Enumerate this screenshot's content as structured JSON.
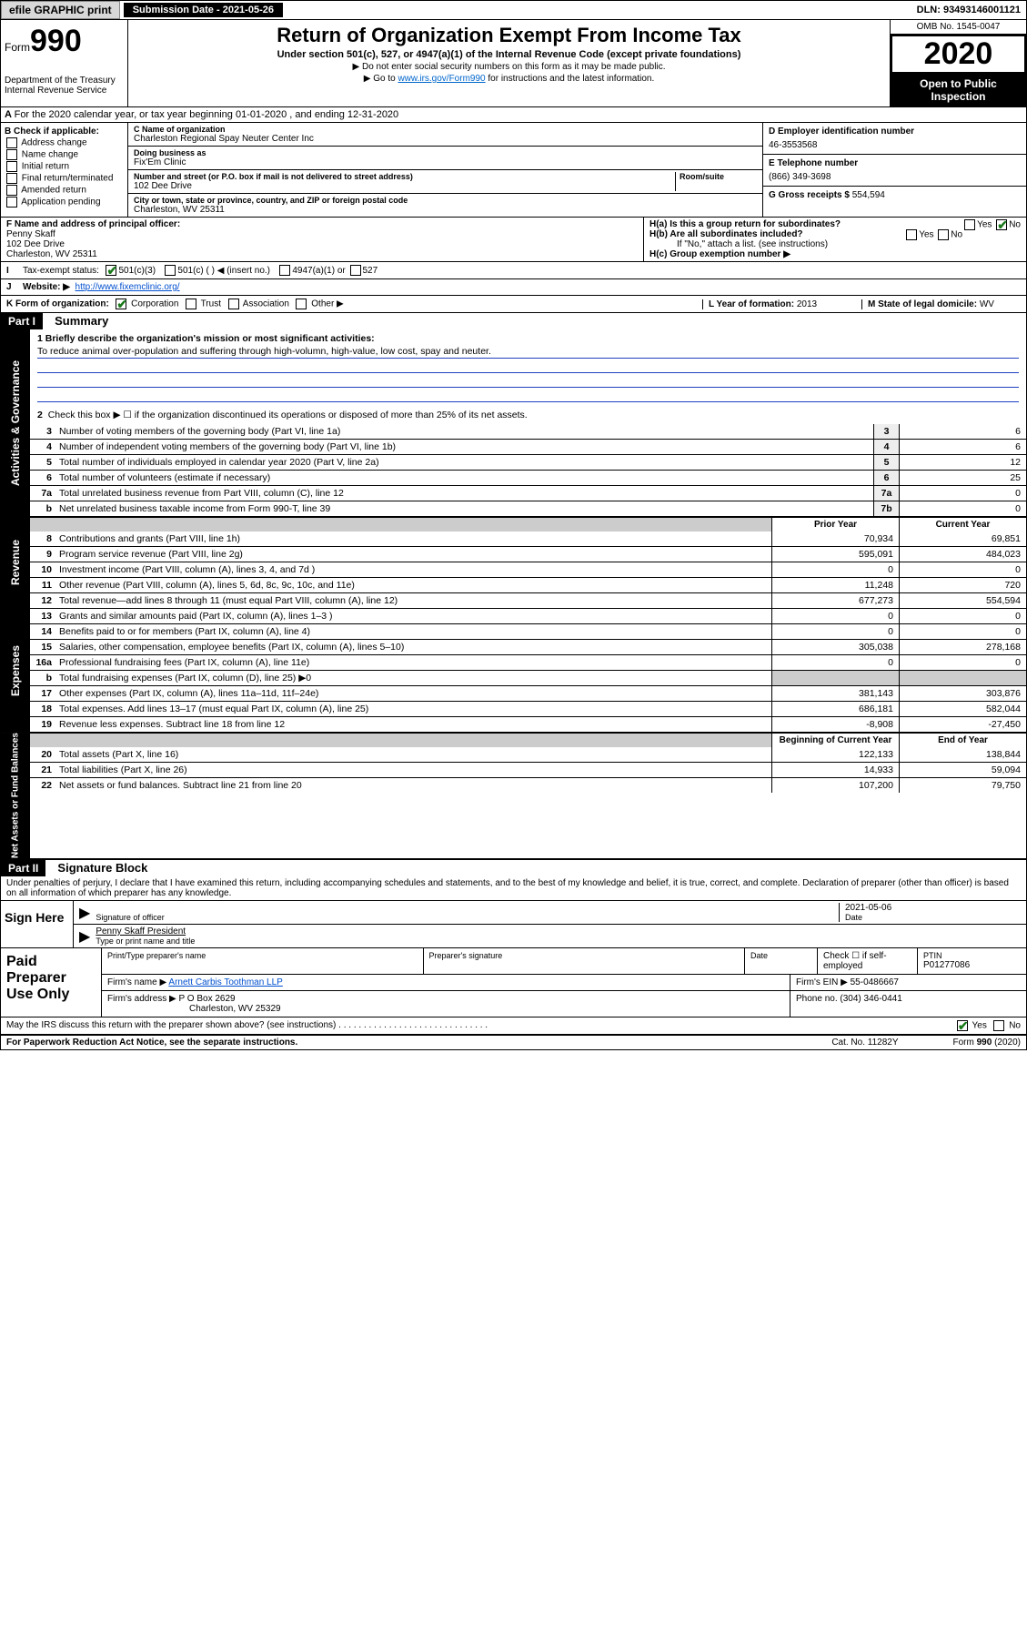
{
  "top": {
    "efile": "efile GRAPHIC print",
    "submission": "Submission Date - 2021-05-26",
    "dln": "DLN: 93493146001121"
  },
  "header": {
    "form_word": "Form",
    "form_no": "990",
    "dept": "Department of the Treasury\nInternal Revenue Service",
    "title": "Return of Organization Exempt From Income Tax",
    "subtitle": "Under section 501(c), 527, or 4947(a)(1) of the Internal Revenue Code (except private foundations)",
    "note1": "▶ Do not enter social security numbers on this form as it may be made public.",
    "note2_pre": "▶ Go to ",
    "note2_link": "www.irs.gov/Form990",
    "note2_post": " for instructions and the latest information.",
    "omb": "OMB No. 1545-0047",
    "year": "2020",
    "open": "Open to Public Inspection"
  },
  "rowA": "For the 2020 calendar year, or tax year beginning 01-01-2020    , and ending 12-31-2020",
  "boxB": {
    "lab": "B Check if applicable:",
    "opts": [
      "Address change",
      "Name change",
      "Initial return",
      "Final return/terminated",
      "Amended return",
      "Application pending"
    ]
  },
  "boxC": {
    "name_lab": "C Name of organization",
    "name": "Charleston Regional Spay Neuter Center Inc",
    "dba_lab": "Doing business as",
    "dba": "Fix'Em Clinic",
    "addr_lab": "Number and street (or P.O. box if mail is not delivered to street address)",
    "room_lab": "Room/suite",
    "addr": "102 Dee Drive",
    "city_lab": "City or town, state or province, country, and ZIP or foreign postal code",
    "city": "Charleston, WV  25311"
  },
  "boxD": {
    "lab": "D Employer identification number",
    "val": "46-3553568"
  },
  "boxE": {
    "lab": "E Telephone number",
    "val": "(866) 349-3698"
  },
  "boxG": {
    "lab": "G Gross receipts $",
    "val": "554,594"
  },
  "boxF": {
    "lab": "F  Name and address of principal officer:",
    "name": "Penny Skaff",
    "addr1": "102 Dee Drive",
    "addr2": "Charleston, WV  25311"
  },
  "boxH": {
    "a": "H(a)  Is this a group return for subordinates?",
    "b": "H(b)  Are all subordinates included?",
    "note": "If \"No,\" attach a list. (see instructions)",
    "c": "H(c)  Group exemption number ▶",
    "yes": "Yes",
    "no": "No"
  },
  "rowI": {
    "lab": "Tax-exempt status:",
    "o1": "501(c)(3)",
    "o2": "501(c) (   ) ◀ (insert no.)",
    "o3": "4947(a)(1) or",
    "o4": "527"
  },
  "rowJ": {
    "lab": "Website: ▶",
    "val": "http://www.fixemclinic.org/"
  },
  "rowK": {
    "lab": "K Form of organization:",
    "o1": "Corporation",
    "o2": "Trust",
    "o3": "Association",
    "o4": "Other ▶",
    "l_lab": "L Year of formation:",
    "l_val": "2013",
    "m_lab": "M State of legal domicile:",
    "m_val": "WV"
  },
  "part1": {
    "label": "Part I",
    "title": "Summary",
    "side_gov": "Activities & Governance",
    "side_rev": "Revenue",
    "side_exp": "Expenses",
    "side_net": "Net Assets or Fund Balances",
    "l1_lab": "1  Briefly describe the organization's mission or most significant activities:",
    "l1_val": "To reduce animal over-population and suffering through high-volumn, high-value, low cost, spay and neuter.",
    "l2": "Check this box ▶ ☐  if the organization discontinued its operations or disposed of more than 25% of its net assets.",
    "lines_gov": [
      {
        "n": "3",
        "t": "Number of voting members of the governing body (Part VI, line 1a)",
        "box": "3",
        "v": "6"
      },
      {
        "n": "4",
        "t": "Number of independent voting members of the governing body (Part VI, line 1b)",
        "box": "4",
        "v": "6"
      },
      {
        "n": "5",
        "t": "Total number of individuals employed in calendar year 2020 (Part V, line 2a)",
        "box": "5",
        "v": "12"
      },
      {
        "n": "6",
        "t": "Total number of volunteers (estimate if necessary)",
        "box": "6",
        "v": "25"
      },
      {
        "n": "7a",
        "t": "Total unrelated business revenue from Part VIII, column (C), line 12",
        "box": "7a",
        "v": "0"
      },
      {
        "n": "b",
        "t": "Net unrelated business taxable income from Form 990-T, line 39",
        "box": "7b",
        "v": "0"
      }
    ],
    "hdr_prior": "Prior Year",
    "hdr_curr": "Current Year",
    "lines_rev": [
      {
        "n": "8",
        "t": "Contributions and grants (Part VIII, line 1h)",
        "p": "70,934",
        "c": "69,851"
      },
      {
        "n": "9",
        "t": "Program service revenue (Part VIII, line 2g)",
        "p": "595,091",
        "c": "484,023"
      },
      {
        "n": "10",
        "t": "Investment income (Part VIII, column (A), lines 3, 4, and 7d )",
        "p": "0",
        "c": "0"
      },
      {
        "n": "11",
        "t": "Other revenue (Part VIII, column (A), lines 5, 6d, 8c, 9c, 10c, and 11e)",
        "p": "11,248",
        "c": "720"
      },
      {
        "n": "12",
        "t": "Total revenue—add lines 8 through 11 (must equal Part VIII, column (A), line 12)",
        "p": "677,273",
        "c": "554,594"
      }
    ],
    "lines_exp": [
      {
        "n": "13",
        "t": "Grants and similar amounts paid (Part IX, column (A), lines 1–3 )",
        "p": "0",
        "c": "0"
      },
      {
        "n": "14",
        "t": "Benefits paid to or for members (Part IX, column (A), line 4)",
        "p": "0",
        "c": "0"
      },
      {
        "n": "15",
        "t": "Salaries, other compensation, employee benefits (Part IX, column (A), lines 5–10)",
        "p": "305,038",
        "c": "278,168"
      },
      {
        "n": "16a",
        "t": "Professional fundraising fees (Part IX, column (A), line 11e)",
        "p": "0",
        "c": "0"
      },
      {
        "n": "b",
        "t": "Total fundraising expenses (Part IX, column (D), line 25) ▶0",
        "p": "",
        "c": "",
        "gray": true
      },
      {
        "n": "17",
        "t": "Other expenses (Part IX, column (A), lines 11a–11d, 11f–24e)",
        "p": "381,143",
        "c": "303,876"
      },
      {
        "n": "18",
        "t": "Total expenses. Add lines 13–17 (must equal Part IX, column (A), line 25)",
        "p": "686,181",
        "c": "582,044"
      },
      {
        "n": "19",
        "t": "Revenue less expenses. Subtract line 18 from line 12",
        "p": "-8,908",
        "c": "-27,450"
      }
    ],
    "hdr_beg": "Beginning of Current Year",
    "hdr_end": "End of Year",
    "lines_net": [
      {
        "n": "20",
        "t": "Total assets (Part X, line 16)",
        "p": "122,133",
        "c": "138,844"
      },
      {
        "n": "21",
        "t": "Total liabilities (Part X, line 26)",
        "p": "14,933",
        "c": "59,094"
      },
      {
        "n": "22",
        "t": "Net assets or fund balances. Subtract line 21 from line 20",
        "p": "107,200",
        "c": "79,750"
      }
    ]
  },
  "part2": {
    "label": "Part II",
    "title": "Signature Block",
    "intro": "Under penalties of perjury, I declare that I have examined this return, including accompanying schedules and statements, and to the best of my knowledge and belief, it is true, correct, and complete. Declaration of preparer (other than officer) is based on all information of which preparer has any knowledge.",
    "sign_here": "Sign Here",
    "sig_of": "Signature of officer",
    "date_lab": "Date",
    "date": "2021-05-06",
    "name": "Penny Skaff President",
    "name_lab": "Type or print name and title",
    "paid": "Paid Preparer Use Only",
    "pt_lab": "Print/Type preparer's name",
    "ps_lab": "Preparer's signature",
    "dt_lab": "Date",
    "check_lab": "Check ☐ if self-employed",
    "ptin_lab": "PTIN",
    "ptin": "P01277086",
    "firm_lab": "Firm's name   ▶",
    "firm": "Arnett Carbis Toothman LLP",
    "ein_lab": "Firm's EIN ▶",
    "ein": "55-0486667",
    "faddr_lab": "Firm's address ▶",
    "faddr1": "P O Box 2629",
    "faddr2": "Charleston, WV  25329",
    "phone_lab": "Phone no.",
    "phone": "(304) 346-0441",
    "discuss": "May the IRS discuss this return with the preparer shown above? (see instructions)",
    "yes": "Yes",
    "no": "No"
  },
  "footer": {
    "left": "For Paperwork Reduction Act Notice, see the separate instructions.",
    "mid": "Cat. No. 11282Y",
    "right": "Form 990 (2020)"
  }
}
